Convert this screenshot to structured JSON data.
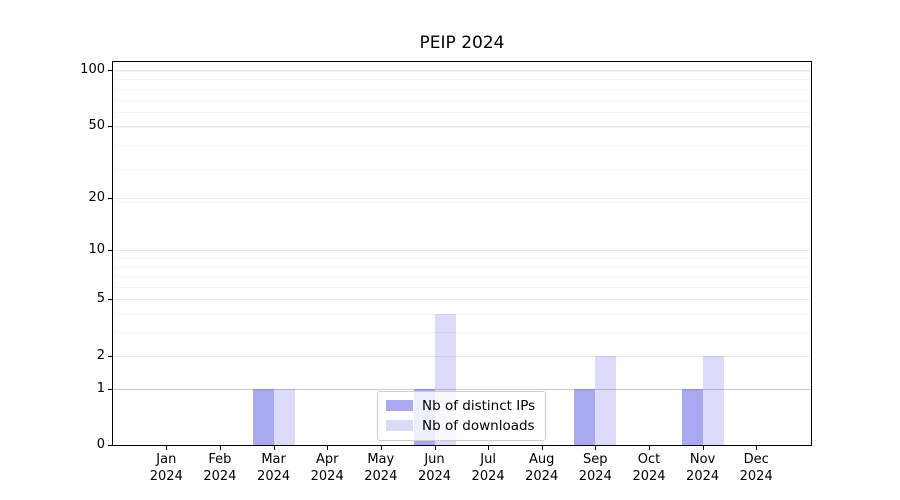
{
  "chart_data": {
    "type": "bar",
    "title": "PEIP 2024",
    "categories": [
      "Jan 2024",
      "Feb 2024",
      "Mar 2024",
      "Apr 2024",
      "May 2024",
      "Jun 2024",
      "Jul 2024",
      "Aug 2024",
      "Sep 2024",
      "Oct 2024",
      "Nov 2024",
      "Dec 2024"
    ],
    "month_labels": [
      "Jan",
      "Feb",
      "Mar",
      "Apr",
      "May",
      "Jun",
      "Jul",
      "Aug",
      "Sep",
      "Oct",
      "Nov",
      "Dec"
    ],
    "year_label": "2024",
    "series": [
      {
        "name": "Nb of distinct IPs",
        "color": "rgba(90,90,230,0.52)",
        "values": [
          0,
          0,
          1,
          0,
          0,
          1,
          0,
          0,
          1,
          0,
          1,
          0
        ]
      },
      {
        "name": "Nb of downloads",
        "color": "rgba(90,90,230,0.21)",
        "values": [
          0,
          0,
          1,
          0,
          0,
          4,
          0,
          0,
          2,
          0,
          2,
          0
        ]
      }
    ],
    "y_axis": {
      "scale": "log10(1+x)",
      "ticks": [
        0,
        1,
        2,
        5,
        10,
        20,
        50,
        100
      ],
      "minor_gridlines": [
        3,
        4,
        6,
        7,
        8,
        9,
        19,
        29,
        39,
        49,
        59,
        69,
        79,
        89,
        99
      ],
      "ylim": [
        0,
        100
      ]
    },
    "legend": {
      "position": "lower center"
    },
    "grid": {
      "major_color": "#e7e7e7",
      "minor_color": "#f3f3f3",
      "baseline_value": 1,
      "baseline_color": "#c9c9c9"
    }
  }
}
